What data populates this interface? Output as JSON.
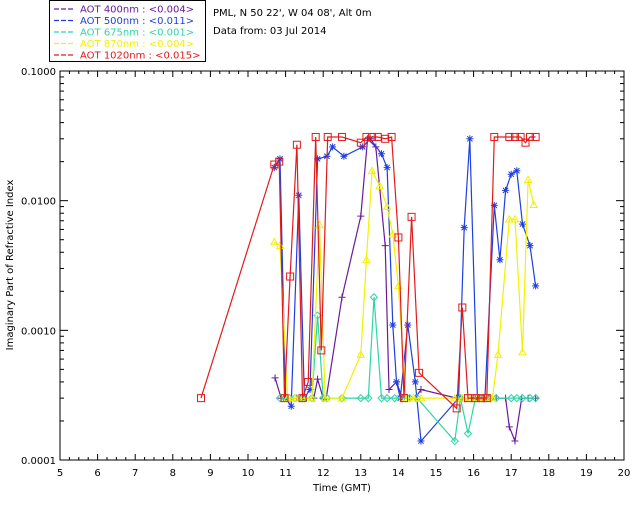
{
  "info": {
    "site": "PML, N 50 22', W 04 08', Alt 0m",
    "date": "Data from: 03 Jul 2014"
  },
  "chart_data": {
    "type": "line",
    "title": "",
    "xlabel": "Time (GMT)",
    "ylabel": "Imaginary Part of Refractive Index",
    "xlim": [
      5,
      20
    ],
    "ylim": [
      0.0001,
      0.1
    ],
    "yscale": "log",
    "xticks": [
      5,
      6,
      7,
      8,
      9,
      10,
      11,
      12,
      13,
      14,
      15,
      16,
      17,
      18,
      19,
      20
    ],
    "xtick_labels": [
      "5",
      "6",
      "7",
      "8",
      "9",
      "10",
      "11",
      "12",
      "13",
      "14",
      "15",
      "16",
      "17",
      "18",
      "19",
      "20"
    ],
    "yticks": [
      0.0001,
      0.001,
      0.01,
      0.1
    ],
    "ytick_labels": [
      "0.0001",
      "0.0010",
      "0.0100",
      "0.1000"
    ],
    "grid": false,
    "legend_position": "top-left-outside",
    "series": [
      {
        "name": "AOT  400nm : <0.004>",
        "color": "#6a1b9a",
        "marker": "plus",
        "points": [
          [
            10.72,
            0.00043
          ],
          [
            10.88,
            0.0003
          ],
          [
            11.05,
            0.0003
          ],
          [
            11.3,
            0.0003
          ],
          [
            11.4,
            0.0003
          ],
          [
            11.55,
            0.0003
          ],
          [
            11.75,
            0.0003
          ],
          [
            11.85,
            0.00042
          ],
          [
            12.0,
            0.0003
          ],
          [
            12.08,
            0.0003
          ],
          [
            12.5,
            0.0018
          ],
          [
            13.0,
            0.0076
          ],
          [
            13.18,
            0.03
          ],
          [
            13.4,
            0.026
          ],
          [
            13.65,
            0.0045
          ],
          [
            13.75,
            0.00035
          ],
          [
            13.95,
            0.0004
          ],
          [
            14.1,
            0.0003
          ],
          [
            14.3,
            0.0003
          ],
          [
            14.45,
            0.0003
          ],
          [
            14.6,
            0.00035
          ],
          [
            15.55,
            0.0003
          ],
          [
            15.7,
            0.0003
          ],
          [
            15.85,
            0.0003
          ],
          [
            16.0,
            0.0003
          ],
          [
            16.2,
            0.0003
          ],
          [
            16.4,
            0.0003
          ],
          [
            16.6,
            0.0003
          ],
          [
            16.85,
            0.0003
          ],
          [
            16.95,
            0.00018
          ],
          [
            17.1,
            0.00014
          ],
          [
            17.28,
            0.0003
          ],
          [
            17.45,
            0.0003
          ],
          [
            17.65,
            0.0003
          ]
        ]
      },
      {
        "name": "AOT  500nm : <0.011>",
        "color": "#1f3fe0",
        "marker": "asterisk",
        "points": [
          [
            10.7,
            0.018
          ],
          [
            10.85,
            0.021
          ],
          [
            11.0,
            0.0003
          ],
          [
            11.15,
            0.00026
          ],
          [
            11.35,
            0.011
          ],
          [
            11.5,
            0.0003
          ],
          [
            11.65,
            0.00035
          ],
          [
            11.85,
            0.021
          ],
          [
            12.1,
            0.022
          ],
          [
            12.25,
            0.026
          ],
          [
            12.55,
            0.022
          ],
          [
            13.05,
            0.026
          ],
          [
            13.25,
            0.03
          ],
          [
            13.55,
            0.023
          ],
          [
            13.7,
            0.018
          ],
          [
            13.85,
            0.0011
          ],
          [
            13.95,
            0.0004
          ],
          [
            14.05,
            0.0003
          ],
          [
            14.25,
            0.0011
          ],
          [
            14.45,
            0.0004
          ],
          [
            14.6,
            0.00014
          ],
          [
            15.6,
            0.0003
          ],
          [
            15.75,
            0.0062
          ],
          [
            15.9,
            0.03
          ],
          [
            16.1,
            0.0003
          ],
          [
            16.3,
            0.0003
          ],
          [
            16.55,
            0.0092
          ],
          [
            16.7,
            0.0035
          ],
          [
            16.85,
            0.012
          ],
          [
            17.0,
            0.016
          ],
          [
            17.15,
            0.017
          ],
          [
            17.3,
            0.0066
          ],
          [
            17.5,
            0.0045
          ],
          [
            17.65,
            0.0022
          ]
        ]
      },
      {
        "name": "AOT  675nm : <0.001>",
        "color": "#2ed6a6",
        "marker": "diamond",
        "points": [
          [
            10.85,
            0.0003
          ],
          [
            11.1,
            0.0003
          ],
          [
            11.25,
            0.0003
          ],
          [
            11.45,
            0.0003
          ],
          [
            11.7,
            0.0003
          ],
          [
            11.85,
            0.0013
          ],
          [
            12.0,
            0.0003
          ],
          [
            12.1,
            0.0003
          ],
          [
            12.5,
            0.0003
          ],
          [
            13.0,
            0.0003
          ],
          [
            13.2,
            0.0003
          ],
          [
            13.35,
            0.0018
          ],
          [
            13.55,
            0.0003
          ],
          [
            13.7,
            0.0003
          ],
          [
            13.9,
            0.0003
          ],
          [
            14.1,
            0.0003
          ],
          [
            14.3,
            0.0003
          ],
          [
            14.5,
            0.0003
          ],
          [
            15.5,
            0.00014
          ],
          [
            15.65,
            0.0003
          ],
          [
            15.85,
            0.00016
          ],
          [
            16.05,
            0.0003
          ],
          [
            16.25,
            0.0003
          ],
          [
            16.45,
            0.0003
          ],
          [
            16.6,
            0.0003
          ],
          [
            17.0,
            0.0003
          ],
          [
            17.15,
            0.0003
          ],
          [
            17.3,
            0.0003
          ],
          [
            17.5,
            0.0003
          ],
          [
            17.65,
            0.0003
          ]
        ]
      },
      {
        "name": "AOT  870nm : <0.004>",
        "color": "#f3f100",
        "marker": "triangle",
        "points": [
          [
            10.7,
            0.0048
          ],
          [
            10.85,
            0.0045
          ],
          [
            11.05,
            0.0003
          ],
          [
            11.25,
            0.0003
          ],
          [
            11.45,
            0.0003
          ],
          [
            11.7,
            0.0003
          ],
          [
            11.9,
            0.0065
          ],
          [
            12.05,
            0.0003
          ],
          [
            12.5,
            0.0003
          ],
          [
            13.0,
            0.00065
          ],
          [
            13.15,
            0.0035
          ],
          [
            13.3,
            0.017
          ],
          [
            13.5,
            0.013
          ],
          [
            13.7,
            0.009
          ],
          [
            13.85,
            0.0055
          ],
          [
            14.0,
            0.0022
          ],
          [
            14.2,
            0.0003
          ],
          [
            14.4,
            0.0003
          ],
          [
            14.6,
            0.0003
          ],
          [
            15.5,
            0.0003
          ],
          [
            15.7,
            0.0003
          ],
          [
            15.9,
            0.0003
          ],
          [
            16.1,
            0.0003
          ],
          [
            16.3,
            0.0003
          ],
          [
            16.5,
            0.0003
          ],
          [
            16.65,
            0.00065
          ],
          [
            16.95,
            0.0072
          ],
          [
            17.1,
            0.0072
          ],
          [
            17.3,
            0.00068
          ],
          [
            17.45,
            0.0145
          ],
          [
            17.6,
            0.0093
          ]
        ]
      },
      {
        "name": "AOT 1020nm : <0.015>",
        "color": "#e31a1a",
        "marker": "square",
        "points": [
          [
            8.75,
            0.0003
          ],
          [
            10.7,
            0.019
          ],
          [
            10.83,
            0.02
          ],
          [
            10.97,
            0.0003
          ],
          [
            11.12,
            0.0026
          ],
          [
            11.3,
            0.027
          ],
          [
            11.45,
            0.0003
          ],
          [
            11.6,
            0.0004
          ],
          [
            11.8,
            0.031
          ],
          [
            11.95,
            0.0007
          ],
          [
            12.12,
            0.031
          ],
          [
            12.5,
            0.031
          ],
          [
            13.0,
            0.028
          ],
          [
            13.15,
            0.031
          ],
          [
            13.3,
            0.031
          ],
          [
            13.45,
            0.031
          ],
          [
            13.65,
            0.03
          ],
          [
            13.82,
            0.031
          ],
          [
            14.0,
            0.0052
          ],
          [
            14.15,
            0.0003
          ],
          [
            14.35,
            0.0075
          ],
          [
            14.55,
            0.00047
          ],
          [
            15.55,
            0.00025
          ],
          [
            15.7,
            0.0015
          ],
          [
            15.85,
            0.0003
          ],
          [
            16.05,
            0.0003
          ],
          [
            16.2,
            0.0003
          ],
          [
            16.35,
            0.0003
          ],
          [
            16.55,
            0.031
          ],
          [
            16.95,
            0.031
          ],
          [
            17.1,
            0.031
          ],
          [
            17.25,
            0.031
          ],
          [
            17.38,
            0.028
          ],
          [
            17.5,
            0.031
          ],
          [
            17.65,
            0.031
          ]
        ]
      }
    ]
  }
}
